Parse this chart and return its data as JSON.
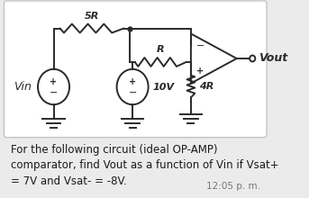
{
  "background_color": "#ebebeb",
  "card_color": "#ffffff",
  "line_color": "#2a2a2a",
  "text_color": "#1a1a1a",
  "title_text": "For the following circuit (ideal OP-AMP)\ncomparator, find Vout as a function of Vin if Vsat+\n= 7V and Vsat- = -8V.",
  "timestamp": "12:05 p. m.",
  "label_5R": "5R",
  "label_R": "R",
  "label_10V": "10V",
  "label_4R": "4R",
  "label_Vin": "Vin",
  "label_Vout": "Vout"
}
